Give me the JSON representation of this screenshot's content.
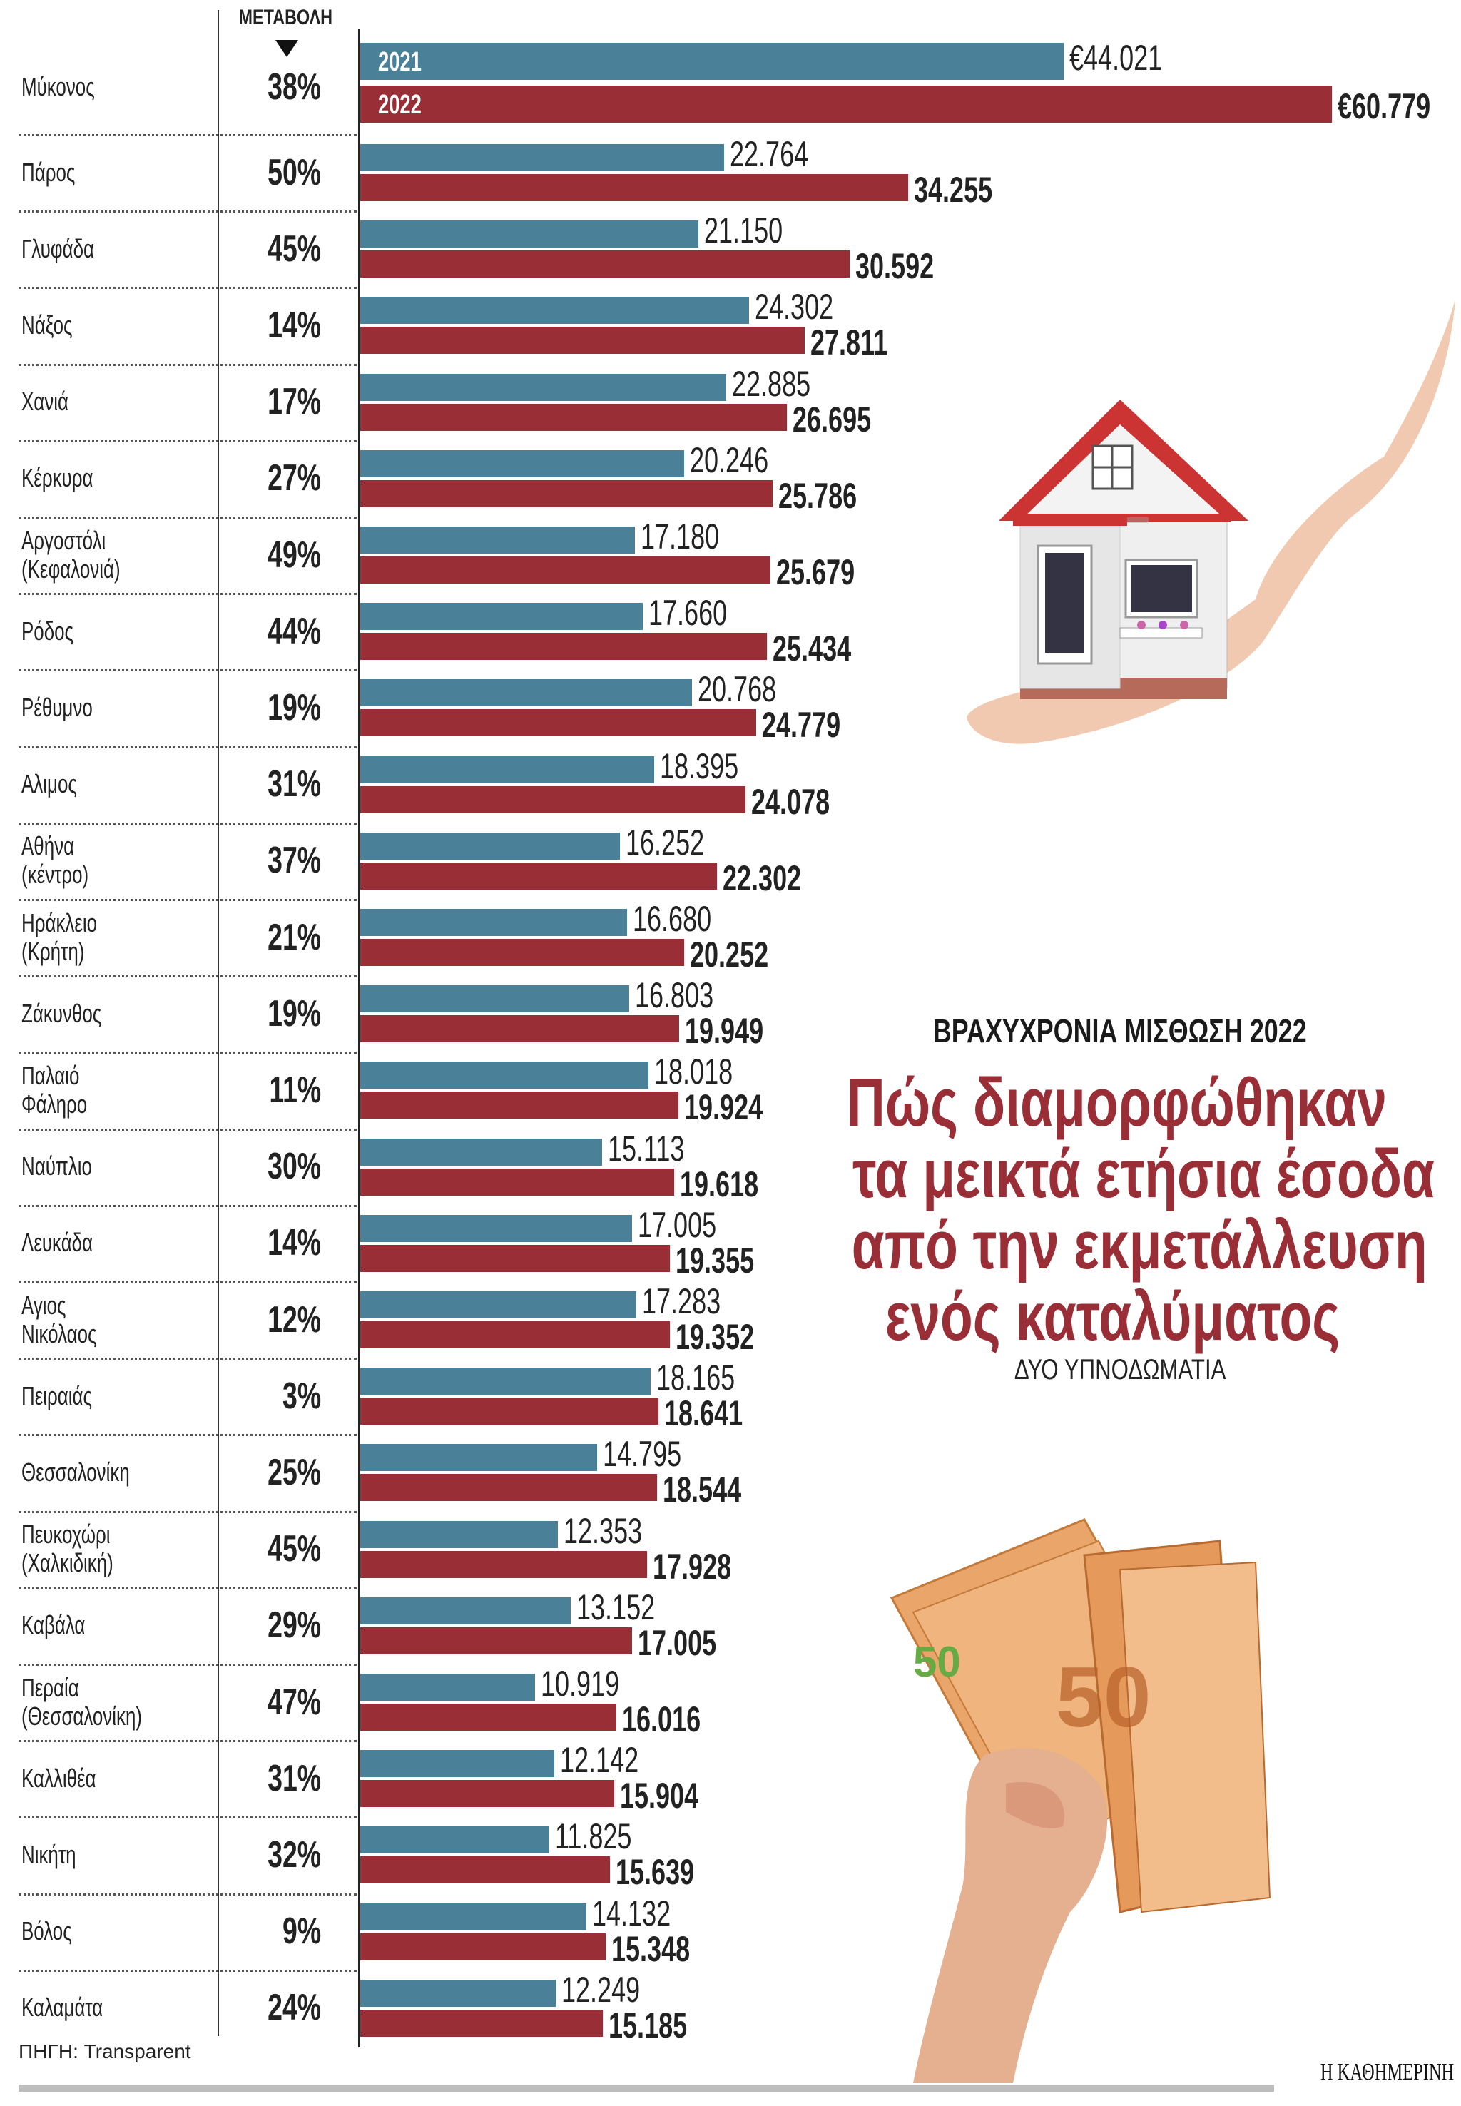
{
  "chart_data": {
    "type": "bar",
    "orientation": "horizontal",
    "kicker": "ΒΡΑΧΥΧΡΟΝΙΑ ΜΙΣΘΩΣΗ 2022",
    "title_lines": [
      "Πώς διαμορφώθηκαν",
      "τα μεικτά ετήσια έσοδα",
      "από την εκμετάλλευση",
      "ενός καταλύματος"
    ],
    "subtitle": "ΔΥΟ ΥΠΝΟΔΩΜΑΤΙΑ",
    "change_header": "ΜΕΤΑΒΟΛΗ",
    "source": "ΠΗΓΗ: Transparent",
    "logo": "Η ΚΑΘΗΜΕΡΙΝΗ",
    "currency_symbol": "€",
    "series": [
      {
        "name": "2021",
        "color": "#4a8199"
      },
      {
        "name": "2022",
        "color": "#9a2e36"
      }
    ],
    "rows": [
      {
        "label": [
          "Μύκονος"
        ],
        "change": "38%",
        "v2021": 44021,
        "v2022": 60779,
        "l2021": "€44.021",
        "l2022": "€60.779"
      },
      {
        "label": [
          "Πάρος"
        ],
        "change": "50%",
        "v2021": 22764,
        "v2022": 34255,
        "l2021": "22.764",
        "l2022": "34.255"
      },
      {
        "label": [
          "Γλυφάδα"
        ],
        "change": "45%",
        "v2021": 21150,
        "v2022": 30592,
        "l2021": "21.150",
        "l2022": "30.592"
      },
      {
        "label": [
          "Νάξος"
        ],
        "change": "14%",
        "v2021": 24302,
        "v2022": 27811,
        "l2021": "24.302",
        "l2022": "27.811"
      },
      {
        "label": [
          "Χανιά"
        ],
        "change": "17%",
        "v2021": 22885,
        "v2022": 26695,
        "l2021": "22.885",
        "l2022": "26.695"
      },
      {
        "label": [
          "Κέρκυρα"
        ],
        "change": "27%",
        "v2021": 20246,
        "v2022": 25786,
        "l2021": "20.246",
        "l2022": "25.786"
      },
      {
        "label": [
          "Αργοστόλι",
          "(Κεφαλονιά)"
        ],
        "change": "49%",
        "v2021": 17180,
        "v2022": 25679,
        "l2021": "17.180",
        "l2022": "25.679"
      },
      {
        "label": [
          "Ρόδος"
        ],
        "change": "44%",
        "v2021": 17660,
        "v2022": 25434,
        "l2021": "17.660",
        "l2022": "25.434"
      },
      {
        "label": [
          "Ρέθυμνο"
        ],
        "change": "19%",
        "v2021": 20768,
        "v2022": 24779,
        "l2021": "20.768",
        "l2022": "24.779"
      },
      {
        "label": [
          "Αλιμος"
        ],
        "change": "31%",
        "v2021": 18395,
        "v2022": 24078,
        "l2021": "18.395",
        "l2022": "24.078"
      },
      {
        "label": [
          "Αθήνα",
          "(κέντρο)"
        ],
        "change": "37%",
        "v2021": 16252,
        "v2022": 22302,
        "l2021": "16.252",
        "l2022": "22.302"
      },
      {
        "label": [
          "Ηράκλειο",
          "(Κρήτη)"
        ],
        "change": "21%",
        "v2021": 16680,
        "v2022": 20252,
        "l2021": "16.680",
        "l2022": "20.252"
      },
      {
        "label": [
          "Ζάκυνθος"
        ],
        "change": "19%",
        "v2021": 16803,
        "v2022": 19949,
        "l2021": "16.803",
        "l2022": "19.949"
      },
      {
        "label": [
          "Παλαιό",
          "Φάληρο"
        ],
        "change": "11%",
        "v2021": 18018,
        "v2022": 19924,
        "l2021": "18.018",
        "l2022": "19.924"
      },
      {
        "label": [
          "Ναύπλιο"
        ],
        "change": "30%",
        "v2021": 15113,
        "v2022": 19618,
        "l2021": "15.113",
        "l2022": "19.618"
      },
      {
        "label": [
          "Λευκάδα"
        ],
        "change": "14%",
        "v2021": 17005,
        "v2022": 19355,
        "l2021": "17.005",
        "l2022": "19.355"
      },
      {
        "label": [
          "Αγιος",
          "Νικόλαος"
        ],
        "change": "12%",
        "v2021": 17283,
        "v2022": 19352,
        "l2021": "17.283",
        "l2022": "19.352"
      },
      {
        "label": [
          "Πειραιάς"
        ],
        "change": "3%",
        "v2021": 18165,
        "v2022": 18641,
        "l2021": "18.165",
        "l2022": "18.641"
      },
      {
        "label": [
          "Θεσσαλονίκη"
        ],
        "change": "25%",
        "v2021": 14795,
        "v2022": 18544,
        "l2021": "14.795",
        "l2022": "18.544"
      },
      {
        "label": [
          "Πευκοχώρι",
          "(Χαλκιδική)"
        ],
        "change": "45%",
        "v2021": 12353,
        "v2022": 17928,
        "l2021": "12.353",
        "l2022": "17.928"
      },
      {
        "label": [
          "Καβάλα"
        ],
        "change": "29%",
        "v2021": 13152,
        "v2022": 17005,
        "l2021": "13.152",
        "l2022": "17.005"
      },
      {
        "label": [
          "Περαία",
          "(Θεσσαλονίκη)"
        ],
        "change": "47%",
        "v2021": 10919,
        "v2022": 16016,
        "l2021": "10.919",
        "l2022": "16.016"
      },
      {
        "label": [
          "Καλλιθέα"
        ],
        "change": "31%",
        "v2021": 12142,
        "v2022": 15904,
        "l2021": "12.142",
        "l2022": "15.904"
      },
      {
        "label": [
          "Νικήτη"
        ],
        "change": "32%",
        "v2021": 11825,
        "v2022": 15639,
        "l2021": "11.825",
        "l2022": "15.639"
      },
      {
        "label": [
          "Βόλος"
        ],
        "change": "9%",
        "v2021": 14132,
        "v2022": 15348,
        "l2021": "14.132",
        "l2022": "15.348"
      },
      {
        "label": [
          "Καλαμάτα"
        ],
        "change": "24%",
        "v2021": 12249,
        "v2022": 15185,
        "l2021": "12.249",
        "l2022": "15.185"
      }
    ],
    "xlim": [
      0,
      60779
    ],
    "grid": false
  },
  "illustrations": [
    "house-in-hand",
    "euro-banknotes-in-hand"
  ]
}
